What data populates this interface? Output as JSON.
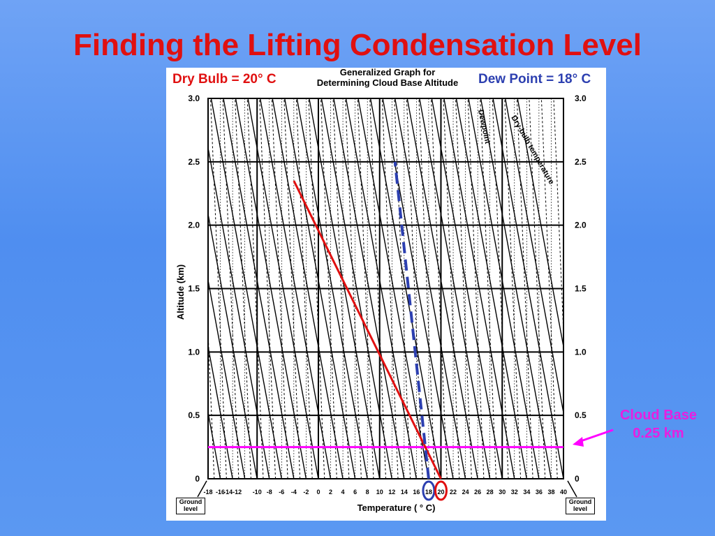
{
  "title": "Finding the Lifting Condensation Level",
  "annotations": {
    "dry_bulb": "Dry Bulb = 20° C",
    "dew_point": "Dew Point = 18° C",
    "graph_title_line1": "Generalized Graph for",
    "graph_title_line2": "Determining Cloud Base Altitude",
    "cloud_base_line1": "Cloud Base",
    "cloud_base_line2": "0.25 km",
    "ground_level_left": "Ground level",
    "ground_level_right": "Ground level"
  },
  "colors": {
    "title": "#e01010",
    "dry_bulb_line": "#e01010",
    "dew_point_line": "#2c3fb0",
    "cloud_base_line": "#ff00ff",
    "background": "#5b98f2"
  },
  "chart_data": {
    "type": "line",
    "xlabel": "Temperature ( ° C)",
    "ylabel": "Altitude (km)",
    "xlim": [
      -18,
      40
    ],
    "ylim": [
      0,
      3.0
    ],
    "x_ticks": [
      -18,
      -16,
      -14,
      -12,
      -10,
      -8,
      -6,
      -4,
      -2,
      0,
      2,
      4,
      6,
      8,
      10,
      12,
      14,
      16,
      18,
      20,
      22,
      24,
      26,
      28,
      30,
      32,
      34,
      36,
      38,
      40
    ],
    "x_tick_labels": [
      "-18",
      "-16",
      "-14-12",
      "",
      "-10",
      "-8",
      "-6",
      "-4",
      "-2",
      "0",
      "2",
      "4",
      "6",
      "8",
      "10",
      "12",
      "14",
      "16",
      "18",
      "20",
      "22",
      "24",
      "26",
      "28",
      "30",
      "32",
      "34",
      "36",
      "38",
      "40"
    ],
    "y_ticks": [
      0,
      0.5,
      1.0,
      1.5,
      2.0,
      2.5,
      3.0
    ],
    "y_tick_labels": [
      "0",
      "0.5",
      "1.0",
      "1.5",
      "2.0",
      "2.5",
      "3.0"
    ],
    "grid": true,
    "line_labels": [
      "Dewpoint",
      "Dry-bulb temperature"
    ],
    "series": [
      {
        "name": "Dry Bulb",
        "x": [
          20,
          -4
        ],
        "y": [
          0,
          2.35
        ],
        "style": "solid"
      },
      {
        "name": "Dew Point",
        "x": [
          18,
          12.5
        ],
        "y": [
          0,
          2.5
        ],
        "style": "dashed"
      }
    ],
    "cloud_base": {
      "y": 0.25
    },
    "highlighted_x": [
      18,
      20
    ]
  }
}
